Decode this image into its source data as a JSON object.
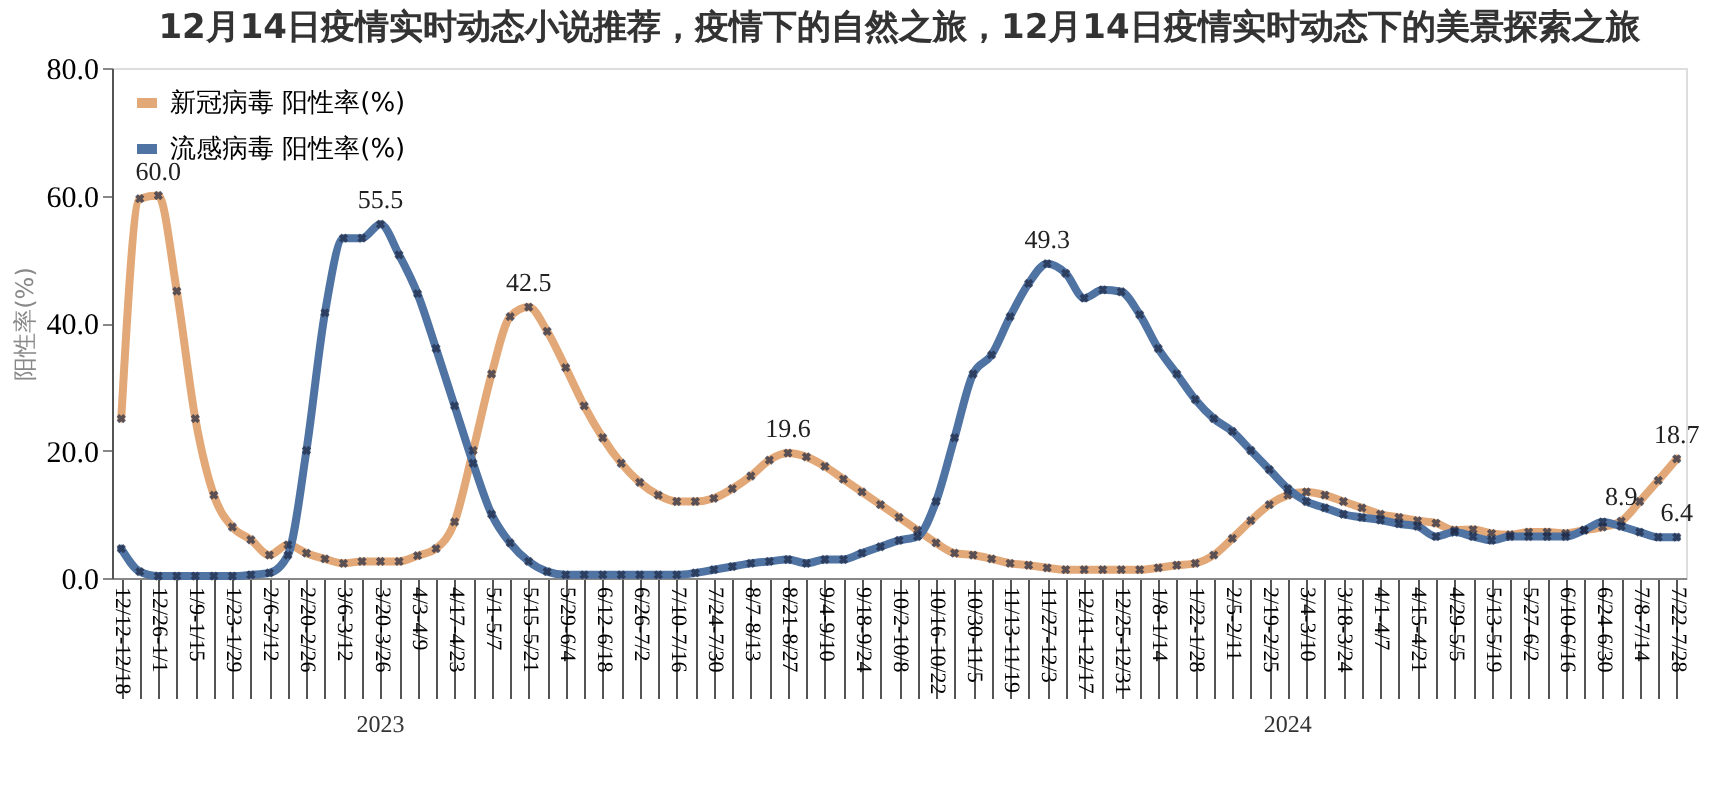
{
  "chart_data": {
    "type": "line",
    "title": "12月14日疫情实时动态小说推荐，疫情下的自然之旅，12月14日疫情实时动态下的美景探索之旅",
    "ylabel": "阳性率(%)",
    "categories": [
      "12/12-12/18",
      null,
      "12/26-1/1",
      null,
      "1/9-1/15",
      null,
      "1/23-1/29",
      null,
      "2/6-2/12",
      null,
      "2/20-2/26",
      null,
      "3/6-3/12",
      null,
      "3/20-3/26",
      null,
      "4/3-4/9",
      null,
      "4/17-4/23",
      null,
      "5/1-5/7",
      null,
      "5/15-5/21",
      null,
      "5/29-6/4",
      null,
      "6/12-6/18",
      null,
      "6/26-7/2",
      null,
      "7/10-7/16",
      null,
      "7/24-7/30",
      null,
      "8/7-8/13",
      null,
      "8/21-8/27",
      null,
      "9/4-9/10",
      null,
      "9/18-9/24",
      null,
      "10/2-10/8",
      null,
      "10/16-10/22",
      null,
      "10/30-11/5",
      null,
      "11/13-11/19",
      null,
      "11/27-12/3",
      null,
      "12/11-12/17",
      null,
      "12/25-12/31",
      null,
      "1/8-1/14",
      null,
      "1/22-1/28",
      null,
      "2/5-2/11",
      null,
      "2/19-2/25",
      null,
      "3/4-3/10",
      null,
      "3/18-3/24",
      null,
      "4/1-4/7",
      null,
      "4/15-4/21",
      null,
      "4/29-5/5",
      null,
      "5/13-5/19",
      null,
      "5/27-6/2",
      null,
      "6/10-6/16",
      null,
      "6/24-6/30",
      null,
      "7/8-7/14",
      null,
      "7/22-7/28"
    ],
    "series": [
      {
        "name": "新冠病毒 阳性率(%)",
        "color": "#e3a877",
        "values": [
          25,
          59.5,
          60.0,
          45,
          25,
          13,
          8,
          6,
          3.6,
          5.2,
          3.9,
          3.0,
          2.3,
          2.6,
          2.6,
          2.6,
          3.5,
          4.6,
          8.8,
          20,
          32,
          41,
          42.5,
          38.7,
          33,
          27,
          22,
          18,
          15,
          13,
          12,
          12,
          12.5,
          14,
          16,
          18.5,
          19.6,
          19,
          17.5,
          15.5,
          13.5,
          11.5,
          9.5,
          7.5,
          5.5,
          3.9,
          3.6,
          3.0,
          2.3,
          2.0,
          1.6,
          1.3,
          1.3,
          1.3,
          1.3,
          1.3,
          1.6,
          2.0,
          2.3,
          3.6,
          6.2,
          9,
          11.5,
          13,
          13.5,
          13,
          12,
          11,
          10,
          9.5,
          9.0,
          8.6,
          7.5,
          7.6,
          7.0,
          6.8,
          7.2,
          7.2,
          7.0,
          7.5,
          8.0,
          8.9,
          12,
          15.3,
          18.7
        ],
        "value_labels": [
          null,
          null,
          "60.0",
          null,
          null,
          null,
          null,
          null,
          null,
          null,
          null,
          null,
          null,
          null,
          null,
          null,
          null,
          null,
          null,
          null,
          null,
          null,
          "42.5",
          null,
          null,
          null,
          null,
          null,
          null,
          null,
          null,
          null,
          null,
          null,
          null,
          null,
          "19.6",
          null,
          null,
          null,
          null,
          null,
          null,
          null,
          null,
          null,
          null,
          null,
          null,
          null,
          null,
          null,
          null,
          null,
          null,
          null,
          null,
          null,
          null,
          null,
          null,
          null,
          null,
          null,
          null,
          null,
          null,
          null,
          null,
          null,
          null,
          null,
          null,
          null,
          null,
          null,
          null,
          null,
          null,
          null,
          null,
          "8.9",
          null,
          null,
          "18.7"
        ]
      },
      {
        "name": "流感病毒 阳性率(%)",
        "color": "#4f73a3",
        "values": [
          4.6,
          1.0,
          0.3,
          0.3,
          0.3,
          0.3,
          0.3,
          0.5,
          0.8,
          3.6,
          20,
          41.6,
          53.3,
          53.3,
          55.5,
          50.7,
          44.6,
          36,
          27,
          18,
          10,
          5.5,
          2.6,
          1.0,
          0.5,
          0.5,
          0.5,
          0.5,
          0.5,
          0.5,
          0.5,
          0.8,
          1.3,
          1.8,
          2.3,
          2.6,
          2.9,
          2.3,
          2.9,
          2.9,
          3.9,
          4.9,
          5.9,
          6.5,
          12,
          22,
          32,
          35,
          41,
          46.2,
          49.3,
          47.8,
          43.9,
          45.2,
          44.9,
          41.3,
          36,
          32,
          28,
          25,
          23,
          20,
          17,
          14,
          12,
          11,
          10,
          9.5,
          9.1,
          8.5,
          8.1,
          6.5,
          7.2,
          6.5,
          5.9,
          6.5,
          6.5,
          6.5,
          6.5,
          7.5,
          8.8,
          8.1,
          7.2,
          6.4,
          6.4
        ],
        "value_labels": [
          null,
          null,
          null,
          null,
          null,
          null,
          null,
          null,
          null,
          null,
          null,
          null,
          null,
          null,
          "55.5",
          null,
          null,
          null,
          null,
          null,
          null,
          null,
          null,
          null,
          null,
          null,
          null,
          null,
          null,
          null,
          null,
          null,
          null,
          null,
          null,
          null,
          null,
          null,
          null,
          null,
          null,
          null,
          null,
          null,
          null,
          null,
          null,
          null,
          null,
          null,
          "49.3",
          null,
          null,
          null,
          null,
          null,
          null,
          null,
          null,
          null,
          null,
          null,
          null,
          null,
          null,
          null,
          null,
          null,
          null,
          null,
          null,
          null,
          null,
          null,
          null,
          null,
          null,
          null,
          null,
          null,
          null,
          null,
          null,
          null,
          "6.4"
        ]
      }
    ],
    "ylim": [
      0,
      80
    ],
    "yticks": [
      {
        "value": 0,
        "label": "0.0"
      },
      {
        "value": 20,
        "label": "20.0"
      },
      {
        "value": 40,
        "label": "40.0"
      },
      {
        "value": 60,
        "label": "60.0"
      },
      {
        "value": 80,
        "label": "80.0"
      }
    ],
    "annotations": [
      "2023",
      "2024"
    ],
    "marker": "cross",
    "line_style": "solid",
    "grid": false,
    "legend": "top left"
  }
}
